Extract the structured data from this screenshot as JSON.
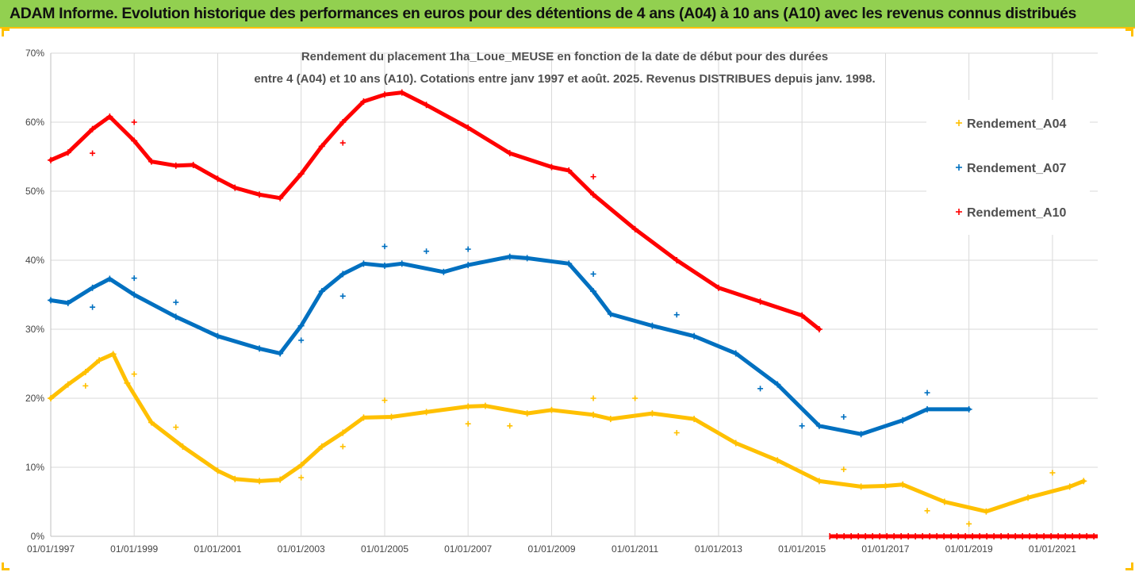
{
  "banner": {
    "title": "ADAM Informe. Evolution historique des performances en euros pour des détentions de 4 ans (A04) à 10 ans (A10) avec les revenus connus distribués"
  },
  "colors": {
    "banner_bg": "#92d050",
    "accent": "#ffc000",
    "A04": "#ffc000",
    "A07": "#0070c0",
    "A10": "#ff0000"
  },
  "chart_data": {
    "type": "scatter",
    "title_lines": [
      "Rendement du placement 1ha_Loue_MEUSE en fonction de la date de début pour des durées",
      "entre 4 (A04) et 10 ans (A10). Cotations entre janv 1997 et août. 2025. Revenus DISTRIBUES depuis janv. 1998."
    ],
    "x_axis": {
      "type": "date",
      "min": "1997-01-01",
      "max": "2022-02-01",
      "tick_labels": [
        "01/01/1997",
        "01/01/1999",
        "01/01/2001",
        "01/01/2003",
        "01/01/2005",
        "01/01/2007",
        "01/01/2009",
        "01/01/2011",
        "01/01/2013",
        "01/01/2015",
        "01/01/2017",
        "01/01/2019",
        "01/01/2021"
      ]
    },
    "y_axis": {
      "min": 0,
      "max": 0.7,
      "tick_labels": [
        "0%",
        "10%",
        "20%",
        "30%",
        "40%",
        "50%",
        "60%",
        "70%"
      ]
    },
    "grid": true,
    "legend": {
      "position": "right",
      "entries": [
        "Rendement_A04",
        "Rendement_A07",
        "Rendement_A10"
      ]
    },
    "series": [
      {
        "name": "Rendement_A04",
        "color": "#ffc000",
        "points": [
          [
            "1997-01-01",
            0.2
          ],
          [
            "1997-06-01",
            0.22
          ],
          [
            "1997-11-01",
            0.238
          ],
          [
            "1998-03-01",
            0.255
          ],
          [
            "1998-07-01",
            0.264
          ],
          [
            "1998-11-01",
            0.222
          ],
          [
            "1999-06-01",
            0.165
          ],
          [
            "2000-03-01",
            0.13
          ],
          [
            "2001-01-01",
            0.095
          ],
          [
            "2001-06-01",
            0.083
          ],
          [
            "2002-01-01",
            0.08
          ],
          [
            "2002-07-01",
            0.082
          ],
          [
            "2003-01-01",
            0.103
          ],
          [
            "2003-07-01",
            0.13
          ],
          [
            "2004-01-01",
            0.15
          ],
          [
            "2004-07-01",
            0.172
          ],
          [
            "2005-03-01",
            0.173
          ],
          [
            "2006-01-01",
            0.18
          ],
          [
            "2007-01-01",
            0.188
          ],
          [
            "2007-06-01",
            0.189
          ],
          [
            "2008-06-01",
            0.178
          ],
          [
            "2009-01-01",
            0.183
          ],
          [
            "2010-01-01",
            0.176
          ],
          [
            "2010-06-01",
            0.17
          ],
          [
            "2011-06-01",
            0.178
          ],
          [
            "2012-06-01",
            0.17
          ],
          [
            "2013-06-01",
            0.135
          ],
          [
            "2014-06-01",
            0.11
          ],
          [
            "2015-06-01",
            0.08
          ],
          [
            "2016-06-01",
            0.072
          ],
          [
            "2017-01-01",
            0.073
          ],
          [
            "2017-06-01",
            0.075
          ],
          [
            "2018-06-01",
            0.05
          ],
          [
            "2019-06-01",
            0.036
          ],
          [
            "2020-06-01",
            0.056
          ],
          [
            "2021-06-01",
            0.072
          ],
          [
            "2021-10-01",
            0.08
          ]
        ],
        "outliers": [
          [
            "1997-11-01",
            0.218
          ],
          [
            "1999-01-01",
            0.235
          ],
          [
            "2000-01-01",
            0.158
          ],
          [
            "2003-01-01",
            0.085
          ],
          [
            "2004-01-01",
            0.13
          ],
          [
            "2005-01-01",
            0.197
          ],
          [
            "2007-01-01",
            0.163
          ],
          [
            "2008-01-01",
            0.16
          ],
          [
            "2010-01-01",
            0.2
          ],
          [
            "2011-01-01",
            0.2
          ],
          [
            "2012-01-01",
            0.15
          ],
          [
            "2016-01-01",
            0.097
          ],
          [
            "2018-01-01",
            0.037
          ],
          [
            "2019-01-01",
            0.018
          ],
          [
            "2021-01-01",
            0.092
          ]
        ]
      },
      {
        "name": "Rendement_A07",
        "color": "#0070c0",
        "points": [
          [
            "1997-01-01",
            0.342
          ],
          [
            "1997-06-01",
            0.338
          ],
          [
            "1998-01-01",
            0.36
          ],
          [
            "1998-06-01",
            0.373
          ],
          [
            "1999-01-01",
            0.35
          ],
          [
            "2000-01-01",
            0.318
          ],
          [
            "2001-01-01",
            0.29
          ],
          [
            "2002-01-01",
            0.272
          ],
          [
            "2002-07-01",
            0.265
          ],
          [
            "2003-01-01",
            0.305
          ],
          [
            "2003-07-01",
            0.355
          ],
          [
            "2004-01-01",
            0.38
          ],
          [
            "2004-07-01",
            0.395
          ],
          [
            "2005-01-01",
            0.392
          ],
          [
            "2005-06-01",
            0.395
          ],
          [
            "2006-06-01",
            0.383
          ],
          [
            "2007-01-01",
            0.393
          ],
          [
            "2008-01-01",
            0.405
          ],
          [
            "2008-06-01",
            0.403
          ],
          [
            "2009-06-01",
            0.395
          ],
          [
            "2010-01-01",
            0.355
          ],
          [
            "2010-06-01",
            0.322
          ],
          [
            "2011-06-01",
            0.305
          ],
          [
            "2012-06-01",
            0.29
          ],
          [
            "2013-06-01",
            0.265
          ],
          [
            "2014-06-01",
            0.22
          ],
          [
            "2015-06-01",
            0.16
          ],
          [
            "2016-06-01",
            0.148
          ],
          [
            "2017-06-01",
            0.168
          ],
          [
            "2018-01-01",
            0.184
          ],
          [
            "2019-01-01",
            0.184
          ]
        ],
        "outliers": [
          [
            "1998-01-01",
            0.332
          ],
          [
            "1999-01-01",
            0.374
          ],
          [
            "2000-01-01",
            0.339
          ],
          [
            "2003-01-01",
            0.284
          ],
          [
            "2004-01-01",
            0.348
          ],
          [
            "2005-01-01",
            0.42
          ],
          [
            "2006-01-01",
            0.413
          ],
          [
            "2007-01-01",
            0.416
          ],
          [
            "2010-01-01",
            0.38
          ],
          [
            "2012-01-01",
            0.321
          ],
          [
            "2014-01-01",
            0.214
          ],
          [
            "2015-01-01",
            0.16
          ],
          [
            "2016-01-01",
            0.173
          ],
          [
            "2018-01-01",
            0.208
          ]
        ]
      },
      {
        "name": "Rendement_A10",
        "color": "#ff0000",
        "points": [
          [
            "1997-01-01",
            0.545
          ],
          [
            "1997-06-01",
            0.556
          ],
          [
            "1998-01-01",
            0.59
          ],
          [
            "1998-06-01",
            0.608
          ],
          [
            "1999-01-01",
            0.573
          ],
          [
            "1999-06-01",
            0.543
          ],
          [
            "2000-01-01",
            0.537
          ],
          [
            "2000-06-01",
            0.538
          ],
          [
            "2001-01-01",
            0.518
          ],
          [
            "2001-06-01",
            0.505
          ],
          [
            "2002-01-01",
            0.495
          ],
          [
            "2002-07-01",
            0.49
          ],
          [
            "2003-01-01",
            0.525
          ],
          [
            "2003-07-01",
            0.565
          ],
          [
            "2004-01-01",
            0.6
          ],
          [
            "2004-07-01",
            0.63
          ],
          [
            "2005-01-01",
            0.64
          ],
          [
            "2005-06-01",
            0.643
          ],
          [
            "2006-01-01",
            0.625
          ],
          [
            "2007-01-01",
            0.592
          ],
          [
            "2008-01-01",
            0.555
          ],
          [
            "2009-01-01",
            0.535
          ],
          [
            "2009-06-01",
            0.53
          ],
          [
            "2010-01-01",
            0.495
          ],
          [
            "2011-01-01",
            0.445
          ],
          [
            "2012-01-01",
            0.4
          ],
          [
            "2013-01-01",
            0.36
          ],
          [
            "2014-01-01",
            0.34
          ],
          [
            "2015-01-01",
            0.32
          ],
          [
            "2015-06-01",
            0.3
          ]
        ],
        "outliers": [
          [
            "1998-01-01",
            0.555
          ],
          [
            "1999-01-01",
            0.6
          ],
          [
            "2004-01-01",
            0.57
          ],
          [
            "2010-01-01",
            0.521
          ]
        ],
        "baseline": {
          "x_start": "2015-09-01",
          "x_end": "2022-02-01",
          "y": 0.0
        }
      }
    ]
  }
}
